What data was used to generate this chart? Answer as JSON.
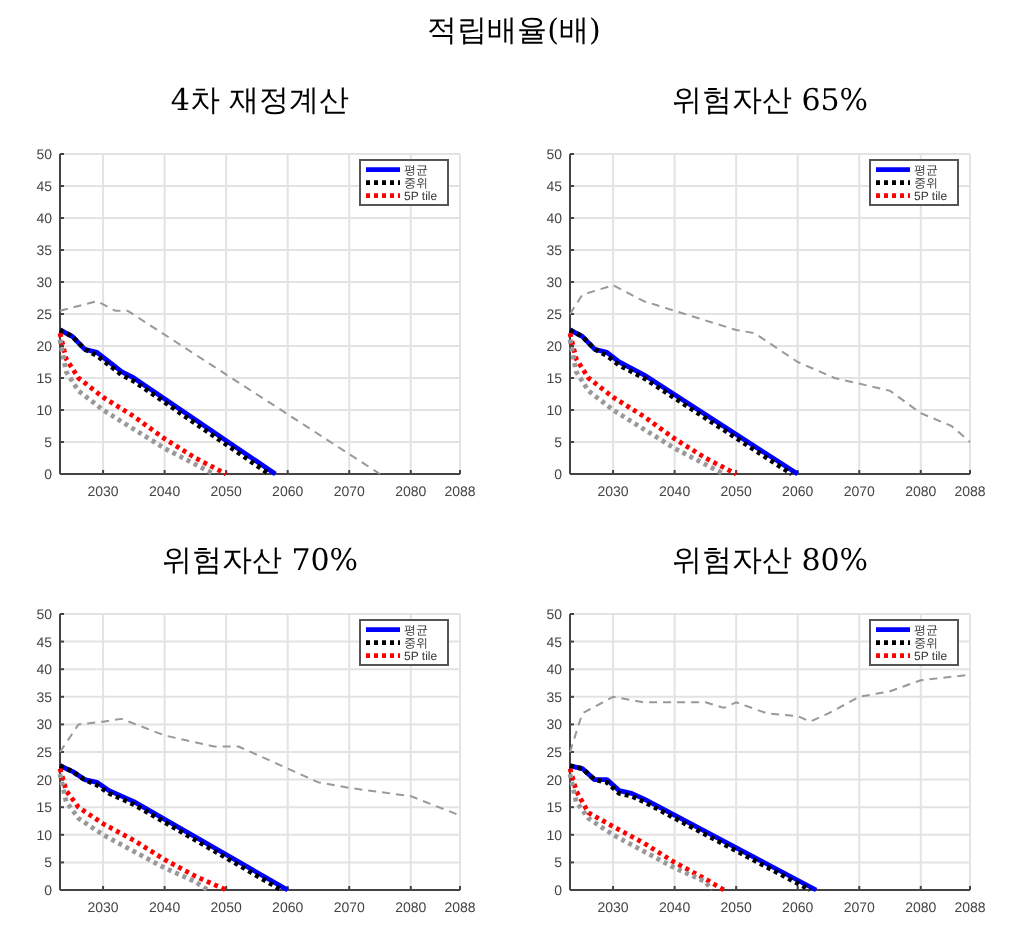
{
  "chart_data": [
    {
      "type": "line",
      "title": "4차 재정계산",
      "annotations": [
        "적립배율(배)"
      ],
      "xlim": [
        2023,
        2088
      ],
      "ylim": [
        0,
        50
      ],
      "xticks": [
        2030,
        2040,
        2050,
        2060,
        2070,
        2080,
        2088
      ],
      "yticks": [
        0,
        5,
        10,
        15,
        20,
        25,
        30,
        35,
        40,
        45,
        50
      ],
      "grid": true,
      "legend": "top right",
      "series": [
        {
          "name": "평균",
          "color": "#0000ff",
          "line_style": "solid",
          "x": [
            2023,
            2025,
            2027,
            2029,
            2031,
            2033,
            2035,
            2058
          ],
          "values": [
            22.5,
            21.5,
            19.5,
            19,
            17.5,
            16,
            15,
            0
          ]
        },
        {
          "name": "중위",
          "color": "#000000",
          "line_style": "dotted",
          "x": [
            2023,
            2025,
            2027,
            2029,
            2031,
            2033,
            2035,
            2057
          ],
          "values": [
            22.5,
            21.5,
            19.5,
            18.5,
            17,
            15.5,
            14.5,
            0
          ]
        },
        {
          "name": "5P tile",
          "color": "#ff0000",
          "line_style": "dotted",
          "x": [
            2023,
            2024,
            2026,
            2030,
            2035,
            2040,
            2045,
            2050
          ],
          "values": [
            22,
            18,
            15,
            12,
            9,
            5.5,
            2.5,
            0
          ]
        },
        {
          "color": "#999999",
          "line_style": "dashed",
          "x": [
            2023,
            2025,
            2029,
            2032,
            2034,
            2075
          ],
          "values": [
            25.5,
            26,
            27,
            25.5,
            25.5,
            0
          ]
        },
        {
          "color": "#999999",
          "line_style": "dotted",
          "x": [
            2023,
            2024,
            2026,
            2030,
            2035,
            2040,
            2045,
            2048
          ],
          "values": [
            21,
            16,
            13,
            10,
            7,
            4,
            1.5,
            0
          ]
        }
      ]
    },
    {
      "type": "line",
      "title": "위험자산 65%",
      "xlim": [
        2023,
        2088
      ],
      "ylim": [
        0,
        50
      ],
      "xticks": [
        2030,
        2040,
        2050,
        2060,
        2070,
        2080,
        2088
      ],
      "yticks": [
        0,
        5,
        10,
        15,
        20,
        25,
        30,
        35,
        40,
        45,
        50
      ],
      "grid": true,
      "legend": "top right",
      "series": [
        {
          "name": "평균",
          "color": "#0000ff",
          "line_style": "solid",
          "x": [
            2023,
            2025,
            2027,
            2029,
            2031,
            2033,
            2035,
            2060
          ],
          "values": [
            22.5,
            21.5,
            19.5,
            19,
            17.5,
            16.5,
            15.5,
            0
          ]
        },
        {
          "name": "중위",
          "color": "#000000",
          "line_style": "dotted",
          "x": [
            2023,
            2025,
            2027,
            2029,
            2031,
            2033,
            2035,
            2059
          ],
          "values": [
            22.5,
            21.5,
            19.5,
            18.5,
            17,
            16,
            15,
            0
          ]
        },
        {
          "name": "5P tile",
          "color": "#ff0000",
          "line_style": "dotted",
          "x": [
            2023,
            2024,
            2026,
            2030,
            2035,
            2040,
            2045,
            2050
          ],
          "values": [
            22,
            18,
            15,
            12,
            9,
            5.5,
            2.5,
            0
          ]
        },
        {
          "color": "#999999",
          "line_style": "dashed",
          "x": [
            2023,
            2025,
            2030,
            2035,
            2040,
            2050,
            2053,
            2060,
            2066,
            2075,
            2080,
            2085,
            2088
          ],
          "values": [
            25,
            28,
            29.5,
            27,
            25.5,
            22.5,
            22,
            17.5,
            15,
            13,
            9.5,
            7.5,
            5
          ]
        },
        {
          "color": "#999999",
          "line_style": "dotted",
          "x": [
            2023,
            2024,
            2026,
            2030,
            2035,
            2040,
            2045,
            2048
          ],
          "values": [
            21,
            16,
            13,
            10,
            7,
            4,
            1.5,
            0
          ]
        }
      ]
    },
    {
      "type": "line",
      "title": "위험자산 70%",
      "xlim": [
        2023,
        2088
      ],
      "ylim": [
        0,
        50
      ],
      "xticks": [
        2030,
        2040,
        2050,
        2060,
        2070,
        2080,
        2088
      ],
      "yticks": [
        0,
        5,
        10,
        15,
        20,
        25,
        30,
        35,
        40,
        45,
        50
      ],
      "grid": true,
      "legend": "top right",
      "series": [
        {
          "name": "평균",
          "color": "#0000ff",
          "line_style": "solid",
          "x": [
            2023,
            2025,
            2027,
            2029,
            2031,
            2033,
            2035,
            2060
          ],
          "values": [
            22.5,
            21.5,
            20,
            19.5,
            18,
            17,
            16,
            0
          ]
        },
        {
          "name": "중위",
          "color": "#000000",
          "line_style": "dotted",
          "x": [
            2023,
            2025,
            2027,
            2029,
            2031,
            2033,
            2035,
            2059
          ],
          "values": [
            22.5,
            21.5,
            20,
            19,
            17.5,
            16.5,
            15.5,
            0
          ]
        },
        {
          "name": "5P tile",
          "color": "#ff0000",
          "line_style": "dotted",
          "x": [
            2023,
            2024,
            2026,
            2030,
            2035,
            2040,
            2045,
            2050
          ],
          "values": [
            22,
            18,
            15,
            12,
            9,
            5.5,
            2.5,
            0
          ]
        },
        {
          "color": "#999999",
          "line_style": "dashed",
          "x": [
            2023,
            2026,
            2030,
            2033,
            2040,
            2048,
            2052,
            2060,
            2065,
            2070,
            2080,
            2088
          ],
          "values": [
            25,
            30,
            30.5,
            31,
            28,
            26,
            26,
            22,
            19.5,
            18.5,
            17,
            13.5
          ]
        },
        {
          "color": "#999999",
          "line_style": "dotted",
          "x": [
            2023,
            2024,
            2026,
            2030,
            2035,
            2040,
            2045,
            2047
          ],
          "values": [
            21,
            16,
            13,
            10,
            7,
            4,
            1.5,
            0
          ]
        }
      ]
    },
    {
      "type": "line",
      "title": "위험자산 80%",
      "xlim": [
        2023,
        2088
      ],
      "ylim": [
        0,
        50
      ],
      "xticks": [
        2030,
        2040,
        2050,
        2060,
        2070,
        2080,
        2088
      ],
      "yticks": [
        0,
        5,
        10,
        15,
        20,
        25,
        30,
        35,
        40,
        45,
        50
      ],
      "grid": true,
      "legend": "top right",
      "series": [
        {
          "name": "평균",
          "color": "#0000ff",
          "line_style": "solid",
          "x": [
            2023,
            2025,
            2027,
            2029,
            2031,
            2033,
            2035,
            2063
          ],
          "values": [
            22.5,
            22,
            20,
            20,
            18,
            17.5,
            16.5,
            0
          ]
        },
        {
          "name": "중위",
          "color": "#000000",
          "line_style": "dotted",
          "x": [
            2023,
            2025,
            2027,
            2029,
            2031,
            2033,
            2035,
            2062
          ],
          "values": [
            22.5,
            22,
            20,
            19.5,
            17.5,
            17,
            16,
            0
          ]
        },
        {
          "name": "5P tile",
          "color": "#ff0000",
          "line_style": "dotted",
          "x": [
            2023,
            2024,
            2026,
            2030,
            2035,
            2040,
            2045,
            2048
          ],
          "values": [
            22,
            18,
            14,
            11.5,
            8.5,
            5,
            2,
            0
          ]
        },
        {
          "color": "#999999",
          "line_style": "dashed",
          "x": [
            2023,
            2025,
            2030,
            2035,
            2040,
            2045,
            2048,
            2050,
            2055,
            2060,
            2062,
            2065,
            2070,
            2075,
            2080,
            2088
          ],
          "values": [
            25,
            32,
            35,
            34,
            34,
            34,
            33,
            34,
            32,
            31.5,
            30.5,
            32,
            35,
            36,
            38,
            39
          ]
        },
        {
          "color": "#999999",
          "line_style": "dotted",
          "x": [
            2023,
            2024,
            2026,
            2030,
            2035,
            2040,
            2045,
            2046
          ],
          "values": [
            21,
            16,
            13,
            10,
            7,
            4,
            1.5,
            0
          ]
        }
      ]
    }
  ]
}
